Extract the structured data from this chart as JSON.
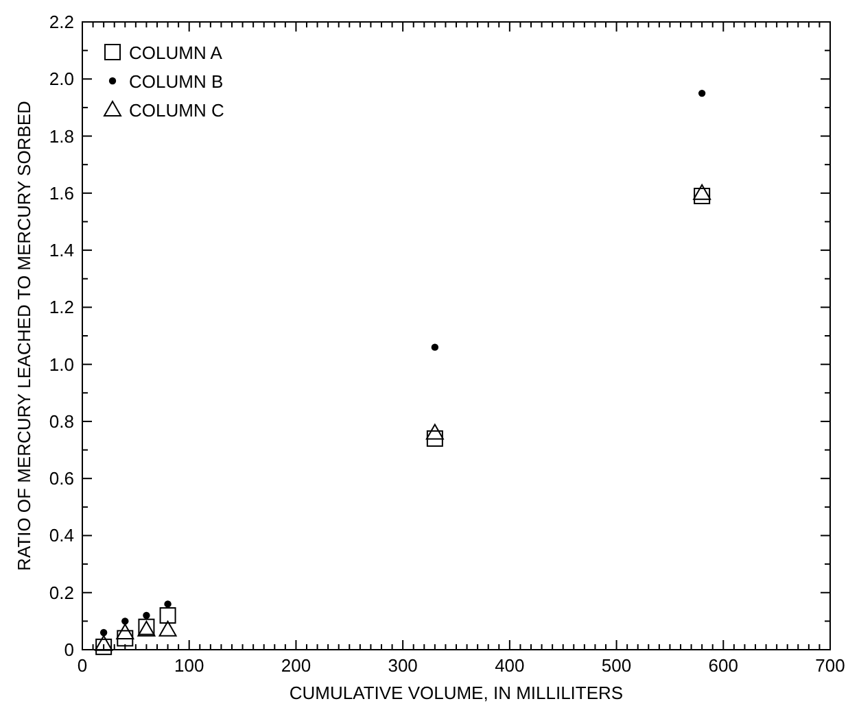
{
  "chart_data": {
    "type": "scatter",
    "xlabel": "CUMULATIVE VOLUME, IN MILLILITERS",
    "ylabel": "RATIO OF MERCURY LEACHED TO MERCURY SORBED",
    "xlim": [
      0,
      700
    ],
    "ylim": [
      0,
      2.2
    ],
    "xticks": [
      0,
      {
        "value": 10,
        "label": null
      },
      {
        "value": 20,
        "label": null
      },
      {
        "value": 30,
        "label": null
      },
      {
        "value": 40,
        "label": null
      },
      {
        "value": 50,
        "label": null
      },
      {
        "value": 60,
        "label": null
      },
      {
        "value": 70,
        "label": null
      },
      {
        "value": 80,
        "label": null
      },
      {
        "value": 90,
        "label": null
      },
      100,
      {
        "value": 110,
        "label": null
      },
      {
        "value": 120,
        "label": null
      },
      {
        "value": 130,
        "label": null
      },
      {
        "value": 140,
        "label": null
      },
      {
        "value": 150,
        "label": null
      },
      {
        "value": 160,
        "label": null
      },
      {
        "value": 170,
        "label": null
      },
      {
        "value": 180,
        "label": null
      },
      {
        "value": 190,
        "label": null
      },
      200,
      {
        "value": 210,
        "label": null
      },
      {
        "value": 220,
        "label": null
      },
      {
        "value": 230,
        "label": null
      },
      {
        "value": 240,
        "label": null
      },
      {
        "value": 250,
        "label": null
      },
      {
        "value": 260,
        "label": null
      },
      {
        "value": 270,
        "label": null
      },
      {
        "value": 280,
        "label": null
      },
      {
        "value": 290,
        "label": null
      },
      300,
      {
        "value": 310,
        "label": null
      },
      {
        "value": 320,
        "label": null
      },
      {
        "value": 330,
        "label": null
      },
      {
        "value": 340,
        "label": null
      },
      {
        "value": 350,
        "label": null
      },
      {
        "value": 360,
        "label": null
      },
      {
        "value": 370,
        "label": null
      },
      {
        "value": 380,
        "label": null
      },
      {
        "value": 390,
        "label": null
      },
      400,
      {
        "value": 410,
        "label": null
      },
      {
        "value": 420,
        "label": null
      },
      {
        "value": 430,
        "label": null
      },
      {
        "value": 440,
        "label": null
      },
      {
        "value": 450,
        "label": null
      },
      {
        "value": 460,
        "label": null
      },
      {
        "value": 470,
        "label": null
      },
      {
        "value": 480,
        "label": null
      },
      {
        "value": 490,
        "label": null
      },
      500,
      {
        "value": 510,
        "label": null
      },
      {
        "value": 520,
        "label": null
      },
      {
        "value": 530,
        "label": null
      },
      {
        "value": 540,
        "label": null
      },
      {
        "value": 550,
        "label": null
      },
      {
        "value": 560,
        "label": null
      },
      {
        "value": 570,
        "label": null
      },
      {
        "value": 580,
        "label": null
      },
      {
        "value": 590,
        "label": null
      },
      600,
      {
        "value": 610,
        "label": null
      },
      {
        "value": 620,
        "label": null
      },
      {
        "value": 630,
        "label": null
      },
      {
        "value": 640,
        "label": null
      },
      {
        "value": 650,
        "label": null
      },
      {
        "value": 660,
        "label": null
      },
      {
        "value": 670,
        "label": null
      },
      {
        "value": 680,
        "label": null
      },
      {
        "value": 690,
        "label": null
      },
      700
    ],
    "yticks": [
      0,
      {
        "value": 0.1,
        "label": null
      },
      0.2,
      {
        "value": 0.3,
        "label": null
      },
      0.4,
      {
        "value": 0.5,
        "label": null
      },
      0.6,
      {
        "value": 0.7,
        "label": null
      },
      0.8,
      {
        "value": 0.9,
        "label": null
      },
      {
        "value": 1,
        "label": "1.0"
      },
      {
        "value": 1.1,
        "label": null
      },
      1.2,
      {
        "value": 1.3,
        "label": null
      },
      1.4,
      {
        "value": 1.5,
        "label": null
      },
      1.6,
      {
        "value": 1.7,
        "label": null
      },
      1.8,
      {
        "value": 1.9,
        "label": null
      },
      {
        "value": 2,
        "label": "2.0"
      },
      {
        "value": 2.1,
        "label": null
      },
      2.2
    ],
    "legend": "top left",
    "grid": false,
    "series": [
      {
        "name": "COLUMN A",
        "color": "#000000",
        "marker": "square",
        "x": [
          20,
          40,
          60,
          80,
          330,
          580
        ],
        "values": [
          0.01,
          0.04,
          0.08,
          0.12,
          0.74,
          1.59
        ]
      },
      {
        "name": "COLUMN B",
        "color": "#000000",
        "marker": "circle",
        "x": [
          20,
          40,
          60,
          80,
          330,
          580
        ],
        "values": [
          0.06,
          0.1,
          0.12,
          0.16,
          1.06,
          1.95
        ]
      },
      {
        "name": "COLUMN C",
        "color": "#000000",
        "marker": "triangle",
        "x": [
          20,
          40,
          60,
          80,
          330,
          580
        ],
        "values": [
          0.02,
          0.06,
          0.07,
          0.07,
          0.76,
          1.6
        ]
      }
    ]
  }
}
